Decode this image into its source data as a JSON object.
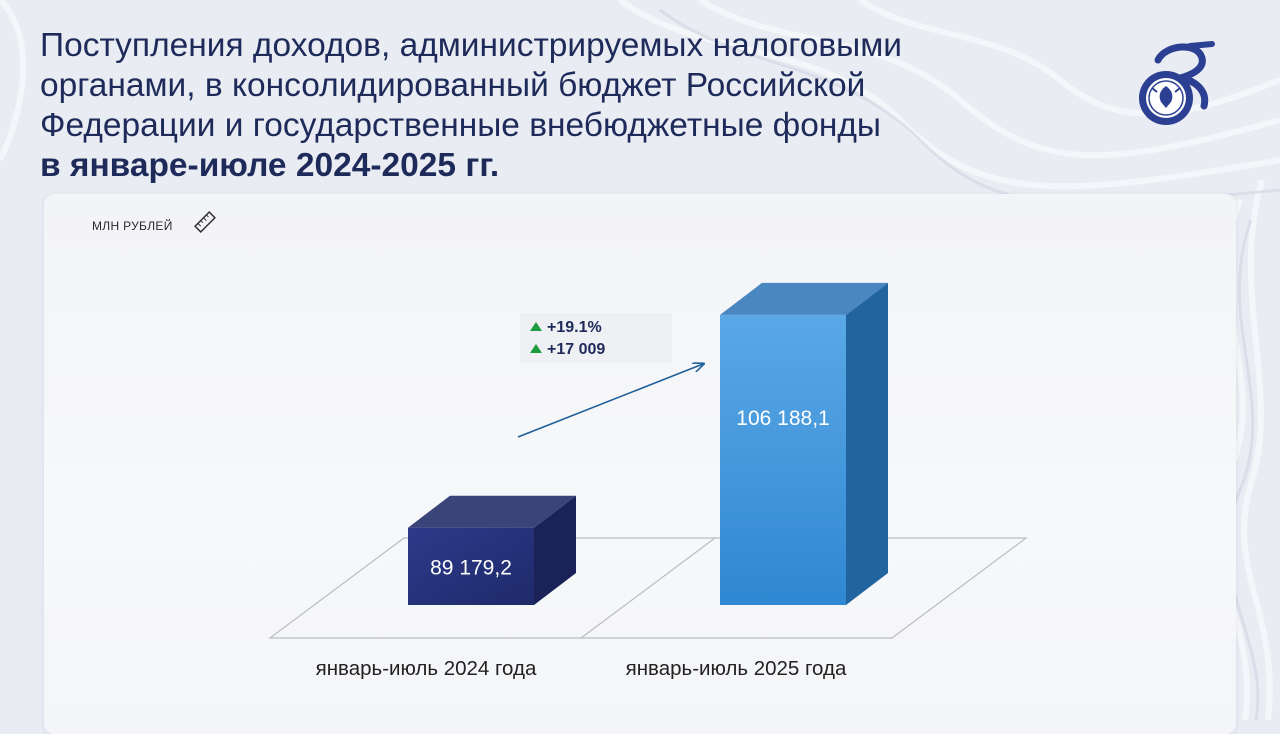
{
  "title": {
    "line1": "Поступления доходов, администрируемых налоговыми",
    "line2": "органами, в консолидированный бюджет Российской",
    "line3": "Федерации и государственные внебюджетные фонды",
    "line4": "в январе-июле 2024-2025 гг."
  },
  "logo_icon": "fns-35-years-emblem-icon",
  "unit_label": "МЛН РУБЛЕЙ",
  "unit_icon": "ruler-icon",
  "delta": {
    "percent": "+19.1%",
    "absolute": "+17 009",
    "icon": "triangle-up-icon",
    "color": "#1c9a3e"
  },
  "colors": {
    "title": "#1e2b5a",
    "bar_2024": "#283478",
    "bar_2025": "#3b8fd6",
    "arrow": "#1f5f99"
  },
  "chart_data": {
    "type": "bar",
    "style": "3d-column",
    "categories": [
      "январь-июль 2024 года",
      "январь-июль 2025 года"
    ],
    "values": [
      89179.2,
      106188.1
    ],
    "value_labels": [
      "89 179,2",
      "106 188,1"
    ],
    "ylabel": "МЛН РУБЛЕЙ",
    "ylim": [
      83000,
      108500
    ],
    "grid": false,
    "legend": "none",
    "annotations": [
      "+19.1%",
      "+17 009"
    ]
  }
}
